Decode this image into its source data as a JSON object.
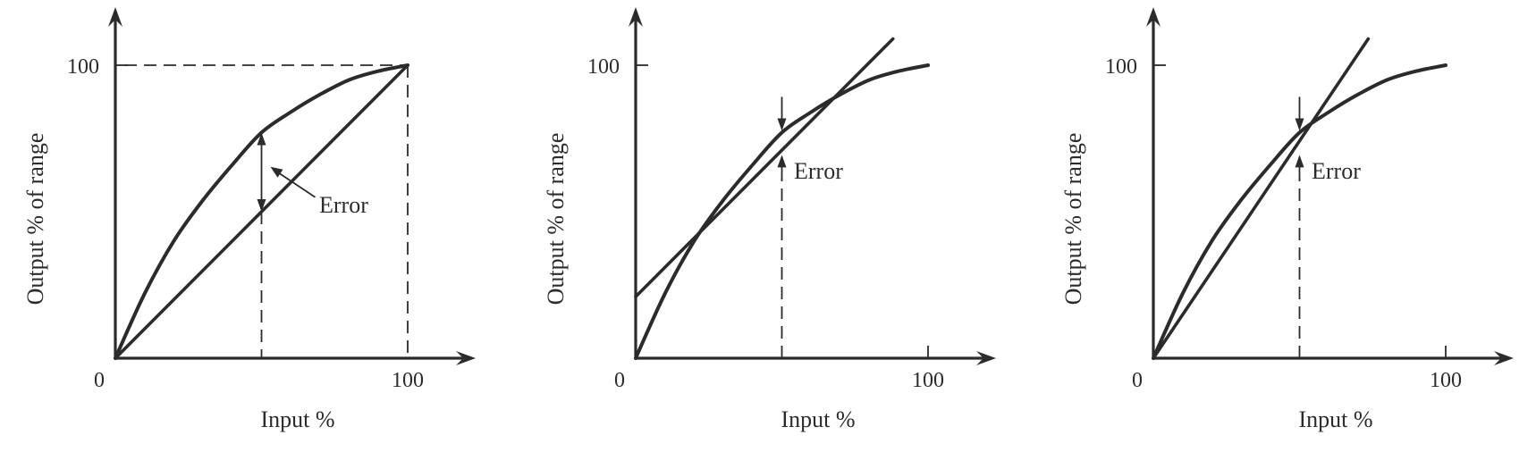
{
  "chart_data": [
    {
      "type": "line",
      "xlabel": "Input %",
      "ylabel": "Output % of range",
      "xlim": [
        0,
        100
      ],
      "ylim": [
        0,
        100
      ],
      "x_ticks": [
        "0",
        "100"
      ],
      "y_ticks": [
        "100"
      ],
      "guides": {
        "corner_dashes_at_100": true,
        "error_dash_x": 50
      },
      "series": [
        {
          "kind": "curve",
          "x": [
            0,
            10,
            20,
            30,
            40,
            50,
            60,
            70,
            80,
            90,
            100
          ],
          "y": [
            0,
            22,
            40,
            54,
            66,
            77,
            84,
            90,
            95,
            98,
            100
          ]
        },
        {
          "kind": "straight",
          "x": [
            0,
            100
          ],
          "y": [
            0,
            100
          ]
        }
      ],
      "annotations": [
        {
          "text": "Error",
          "x": 50,
          "y_low": 50,
          "y_high": 77
        }
      ]
    },
    {
      "type": "line",
      "xlabel": "Input %",
      "ylabel": "Output % of range",
      "xlim": [
        0,
        100
      ],
      "ylim": [
        0,
        100
      ],
      "x_ticks": [
        "0",
        "100"
      ],
      "y_ticks": [
        "100"
      ],
      "guides": {
        "error_dash_x": 50
      },
      "series": [
        {
          "kind": "curve",
          "x": [
            0,
            10,
            20,
            30,
            40,
            50,
            60,
            70,
            80,
            90,
            100
          ],
          "y": [
            0,
            22,
            40,
            54,
            66,
            77,
            84,
            90,
            95,
            98,
            100
          ]
        },
        {
          "kind": "straight",
          "x": [
            0,
            88
          ],
          "y": [
            21,
            109
          ]
        }
      ],
      "annotations": [
        {
          "text": "Error",
          "x": 50,
          "y_low": 70,
          "y_high": 77
        }
      ]
    },
    {
      "type": "line",
      "xlabel": "Input %",
      "ylabel": "Output % of range",
      "xlim": [
        0,
        100
      ],
      "ylim": [
        0,
        100
      ],
      "x_ticks": [
        "0",
        "100"
      ],
      "y_ticks": [
        "100"
      ],
      "guides": {
        "error_dash_x": 50
      },
      "series": [
        {
          "kind": "curve",
          "x": [
            0,
            10,
            20,
            30,
            40,
            50,
            60,
            70,
            80,
            90,
            100
          ],
          "y": [
            0,
            22,
            40,
            54,
            66,
            77,
            84,
            90,
            95,
            98,
            100
          ]
        },
        {
          "kind": "straight",
          "x": [
            0,
            73.5
          ],
          "y": [
            0,
            109
          ]
        }
      ],
      "annotations": [
        {
          "text": "Error",
          "x": 50,
          "y_low": 70,
          "y_high": 77
        }
      ]
    }
  ]
}
